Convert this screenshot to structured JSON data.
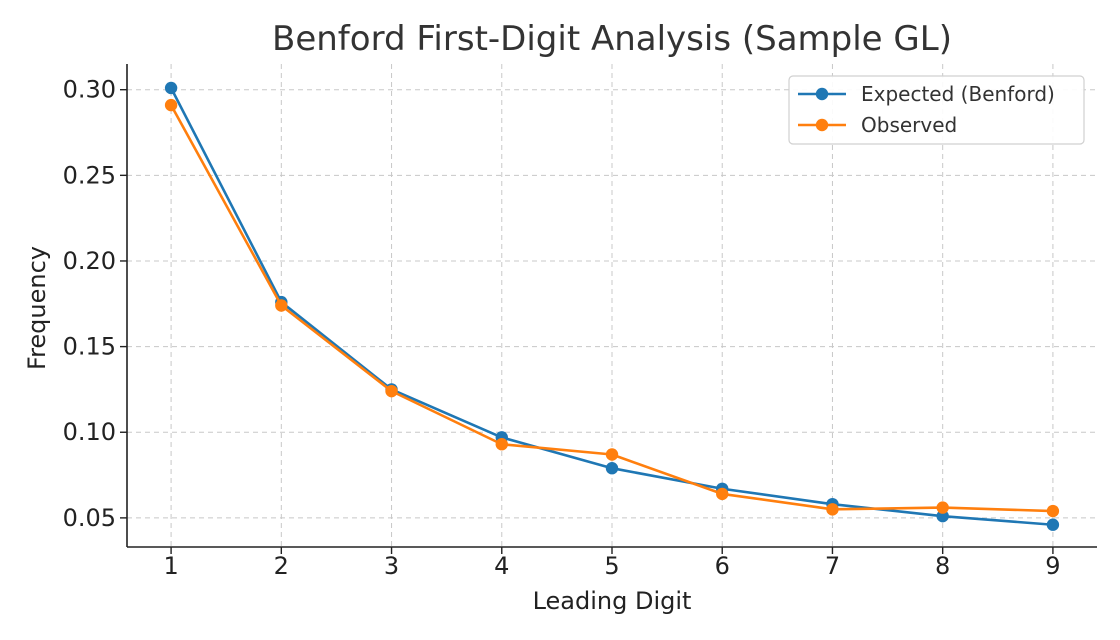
{
  "chart_data": {
    "type": "line",
    "title": "Benford First-Digit Analysis (Sample GL)",
    "xlabel": "Leading Digit",
    "ylabel": "Frequency",
    "x": [
      1,
      2,
      3,
      4,
      5,
      6,
      7,
      8,
      9
    ],
    "xlim": [
      0.6,
      9.4
    ],
    "ylim": [
      0.033,
      0.315
    ],
    "yticks": [
      0.05,
      0.1,
      0.15,
      0.2,
      0.25,
      0.3
    ],
    "ytick_labels": [
      "0.05",
      "0.10",
      "0.15",
      "0.20",
      "0.25",
      "0.30"
    ],
    "xtick_labels": [
      "1",
      "2",
      "3",
      "4",
      "5",
      "6",
      "7",
      "8",
      "9"
    ],
    "grid": true,
    "legend_position": "top-right",
    "series": [
      {
        "name": "Expected (Benford)",
        "color": "#1f77b4",
        "values": [
          0.301,
          0.176,
          0.125,
          0.097,
          0.079,
          0.067,
          0.058,
          0.051,
          0.046
        ]
      },
      {
        "name": "Observed",
        "color": "#ff7f0e",
        "values": [
          0.291,
          0.174,
          0.124,
          0.093,
          0.087,
          0.064,
          0.055,
          0.056,
          0.054
        ]
      }
    ]
  }
}
